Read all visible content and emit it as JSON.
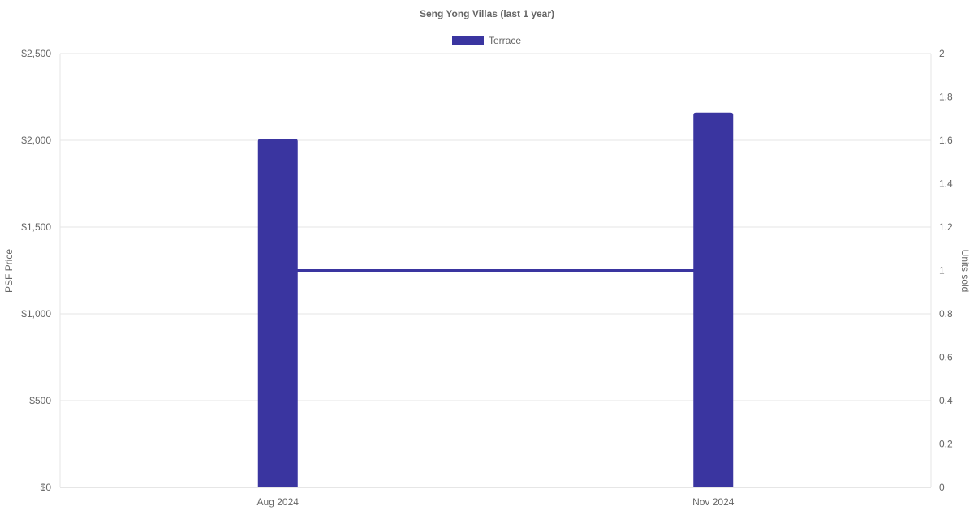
{
  "chart_data": {
    "type": "bar",
    "title": "Seng Yong Villas (last 1 year)",
    "categories": [
      "Aug 2024",
      "Nov 2024"
    ],
    "series": [
      {
        "name": "Terrace",
        "type": "bar",
        "axis": "left",
        "values": [
          2008,
          2160
        ],
        "color": "#3a35a0"
      },
      {
        "type": "line",
        "axis": "right",
        "values": [
          1,
          1
        ],
        "color": "#3a35a0"
      }
    ],
    "ylabel": "PSF Price",
    "y2label": "Units sold",
    "ylim": [
      0,
      2500
    ],
    "y2lim": [
      0,
      2
    ],
    "yticks": [
      "$0",
      "$500",
      "$1,000",
      "$1,500",
      "$2,000",
      "$2,500"
    ],
    "y2ticks": [
      "0",
      "0.2",
      "0.4",
      "0.6",
      "0.8",
      "1",
      "1.2",
      "1.4",
      "1.6",
      "1.8",
      "2"
    ],
    "legend": "top",
    "grid": true
  }
}
